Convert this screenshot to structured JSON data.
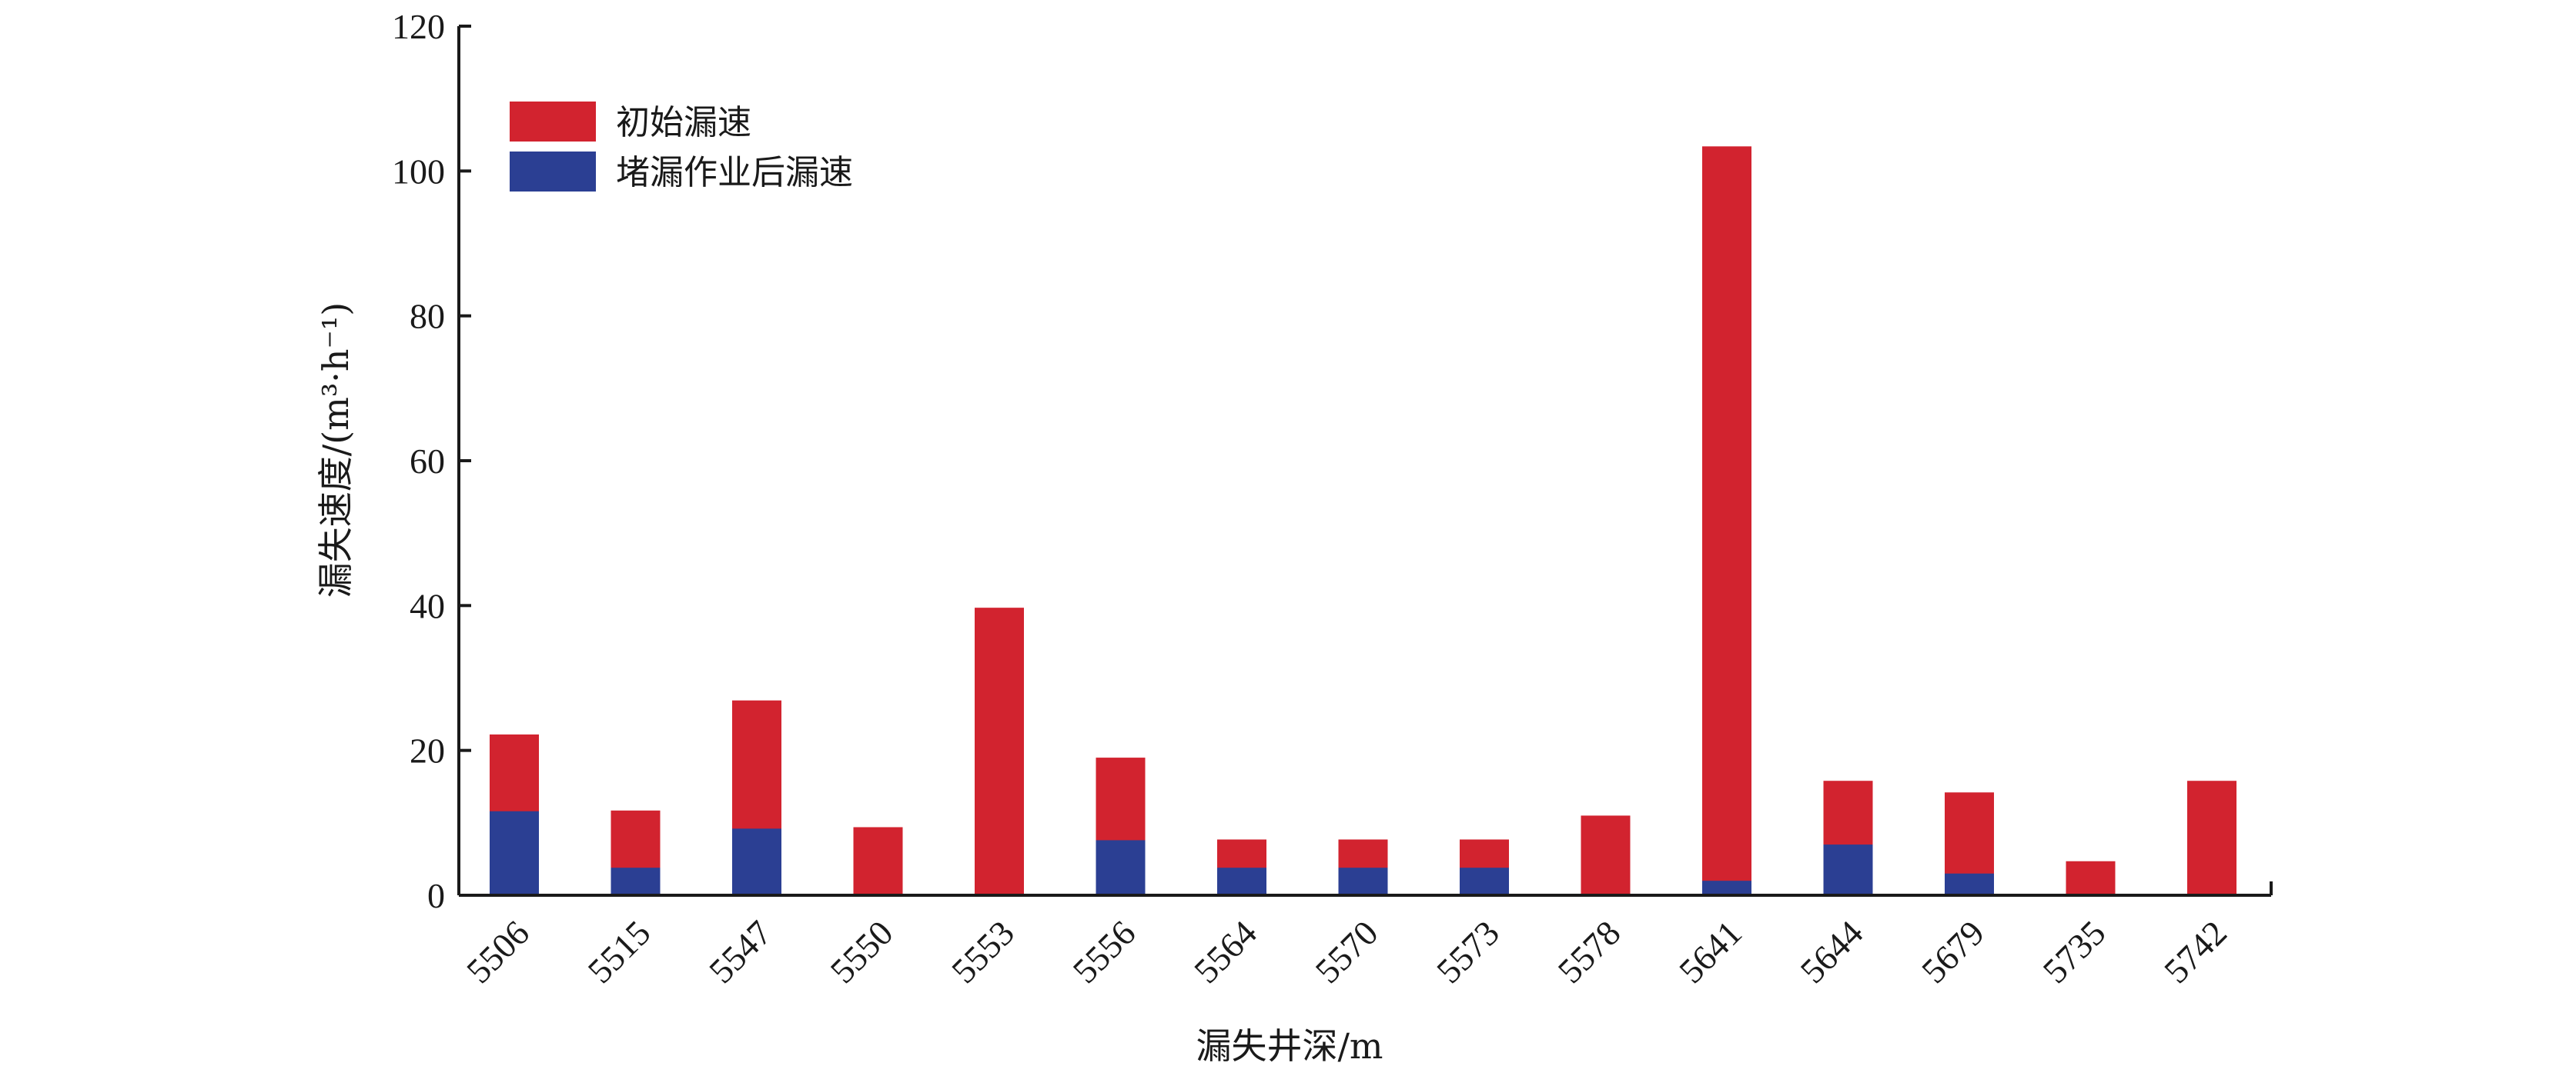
{
  "chart_data": {
    "type": "bar",
    "stacked": true,
    "categories": [
      "5506",
      "5515",
      "5547",
      "5550",
      "5553",
      "5556",
      "5564",
      "5570",
      "5573",
      "5578",
      "5641",
      "5644",
      "5679",
      "5735",
      "5742"
    ],
    "series": [
      {
        "name": "初始漏速",
        "color": "#d2232f",
        "values": [
          22.2,
          11.7,
          26.9,
          9.4,
          39.7,
          19.0,
          7.7,
          7.7,
          7.7,
          11.0,
          103.4,
          15.8,
          14.2,
          4.7,
          15.8
        ]
      },
      {
        "name": "堵漏作业后漏速",
        "color": "#2b3f93",
        "values": [
          11.6,
          3.8,
          9.2,
          0,
          0,
          7.6,
          3.8,
          3.8,
          3.8,
          0,
          2.0,
          7.0,
          3.0,
          0,
          0
        ]
      }
    ],
    "xlabel": "漏失井深/m",
    "ylabel": "漏失速度/(m³·h⁻¹)",
    "ylim": [
      0,
      120
    ],
    "yticks": [
      0,
      20,
      40,
      60,
      80,
      100,
      120
    ],
    "grid": false,
    "legend_position": "top-left"
  }
}
